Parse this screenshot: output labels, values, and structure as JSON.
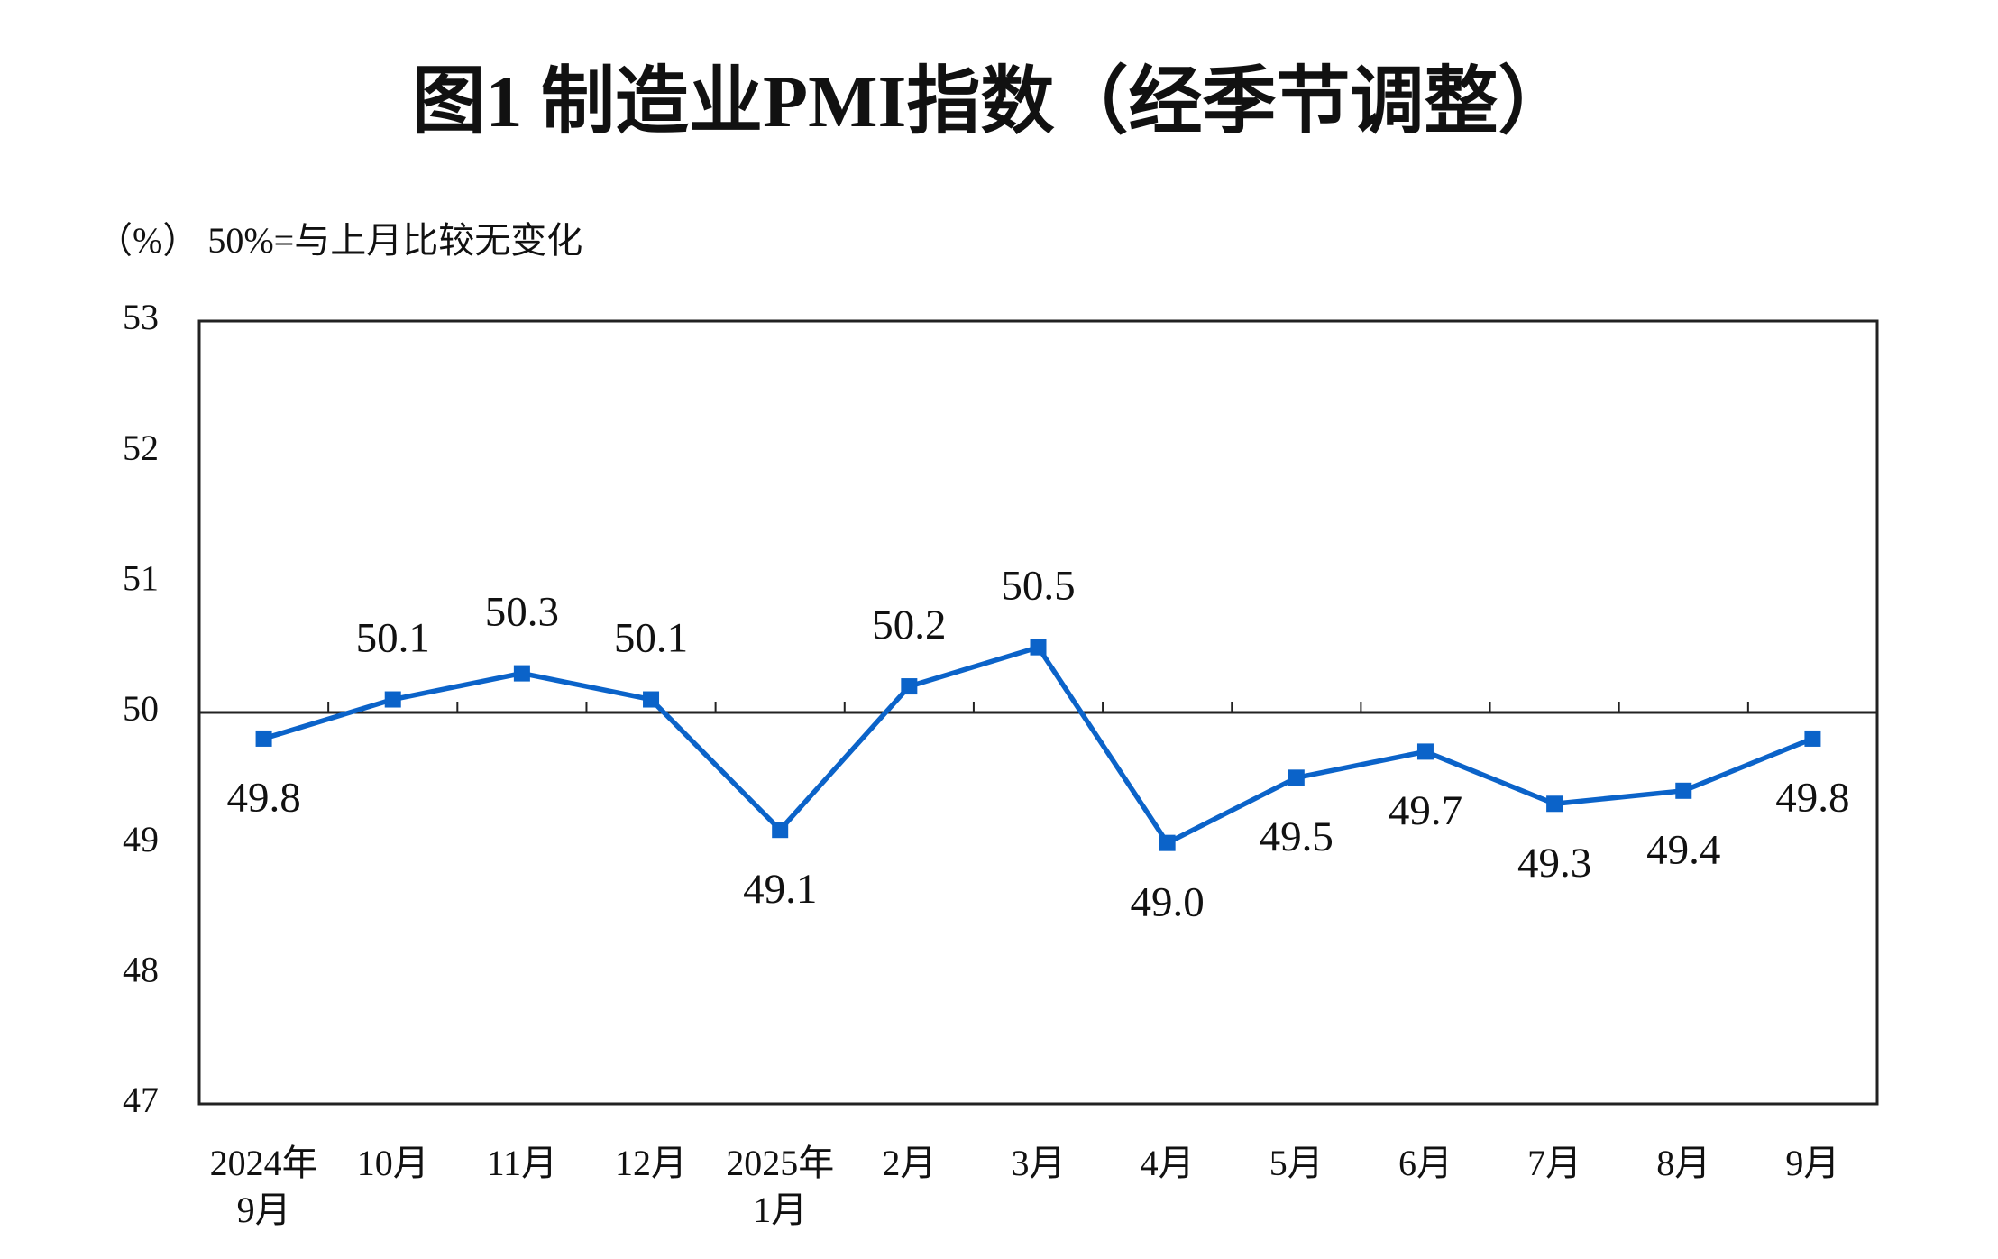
{
  "chart_data": {
    "type": "line",
    "title": "图1  制造业PMI指数（经季节调整）",
    "subtitle": "（%）  50%=与上月比较无变化",
    "categories": [
      "2024年\n9月",
      "10月",
      "11月",
      "12月",
      "2025年\n1月",
      "2月",
      "3月",
      "4月",
      "5月",
      "6月",
      "7月",
      "8月",
      "9月"
    ],
    "series": [
      {
        "color": "#0b63c9",
        "values": [
          49.8,
          50.1,
          50.3,
          50.1,
          49.1,
          50.2,
          50.5,
          49.0,
          49.5,
          49.7,
          49.3,
          49.4,
          49.8
        ],
        "value_labels": [
          "49.8",
          "50.1",
          "50.3",
          "50.1",
          "49.1",
          "50.2",
          "50.5",
          "49.0",
          "49.5",
          "49.7",
          "49.3",
          "49.4",
          "49.8"
        ]
      }
    ],
    "ylim": [
      47,
      53
    ],
    "yticks": [
      47,
      48,
      49,
      50,
      51,
      52,
      53
    ],
    "reference_line": 50
  }
}
